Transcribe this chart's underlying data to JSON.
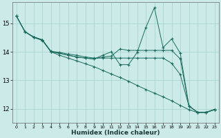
{
  "xlabel": "Humidex (Indice chaleur)",
  "bg_color": "#cceae7",
  "line_color": "#1a6b5e",
  "grid_color": "#aad4d0",
  "xlim": [
    -0.5,
    23.5
  ],
  "ylim": [
    11.5,
    15.75
  ],
  "yticks": [
    12,
    13,
    14,
    15
  ],
  "xticks": [
    0,
    1,
    2,
    3,
    4,
    5,
    6,
    7,
    8,
    9,
    10,
    11,
    12,
    13,
    14,
    15,
    16,
    17,
    18,
    19,
    20,
    21,
    22,
    23
  ],
  "series": [
    {
      "x": [
        0,
        1,
        2,
        3,
        4,
        5,
        6,
        7,
        8,
        9,
        10,
        11,
        12,
        13,
        14,
        15,
        16,
        17,
        18,
        19,
        20,
        21,
        22,
        23
      ],
      "y": [
        15.25,
        14.7,
        14.5,
        14.4,
        14.0,
        13.88,
        13.78,
        13.68,
        13.58,
        13.48,
        13.35,
        13.22,
        13.1,
        12.97,
        12.82,
        12.68,
        12.55,
        12.42,
        12.28,
        12.12,
        11.97,
        11.87,
        11.87,
        11.97
      ]
    },
    {
      "x": [
        0,
        1,
        2,
        3,
        4,
        5,
        6,
        7,
        8,
        9,
        10,
        11,
        12,
        13,
        14,
        15,
        16,
        17,
        18,
        19,
        20,
        21,
        22,
        23
      ],
      "y": [
        15.25,
        14.7,
        14.52,
        14.42,
        14.0,
        13.95,
        13.88,
        13.82,
        13.78,
        13.75,
        13.82,
        13.85,
        14.1,
        14.05,
        14.05,
        14.05,
        14.05,
        14.05,
        14.05,
        13.75,
        12.1,
        11.88,
        11.88,
        11.98
      ]
    },
    {
      "x": [
        0,
        1,
        2,
        3,
        4,
        5,
        6,
        7,
        8,
        9,
        10,
        11,
        12,
        13,
        14,
        15,
        16,
        17,
        18,
        19,
        20,
        21,
        22,
        23
      ],
      "y": [
        15.25,
        14.7,
        14.52,
        14.42,
        14.0,
        13.95,
        13.88,
        13.82,
        13.78,
        13.75,
        13.88,
        14.0,
        13.55,
        13.55,
        13.98,
        14.85,
        15.55,
        14.15,
        14.45,
        13.95,
        12.1,
        11.88,
        11.88,
        11.98
      ]
    },
    {
      "x": [
        0,
        1,
        2,
        3,
        4,
        5,
        6,
        7,
        8,
        9,
        10,
        11,
        12,
        13,
        14,
        15,
        16,
        17,
        18,
        19,
        20,
        21,
        22,
        23
      ],
      "y": [
        15.25,
        14.7,
        14.52,
        14.42,
        14.02,
        13.98,
        13.92,
        13.88,
        13.82,
        13.78,
        13.78,
        13.78,
        13.78,
        13.78,
        13.78,
        13.78,
        13.78,
        13.78,
        13.6,
        13.2,
        12.1,
        11.88,
        11.88,
        11.98
      ]
    }
  ]
}
